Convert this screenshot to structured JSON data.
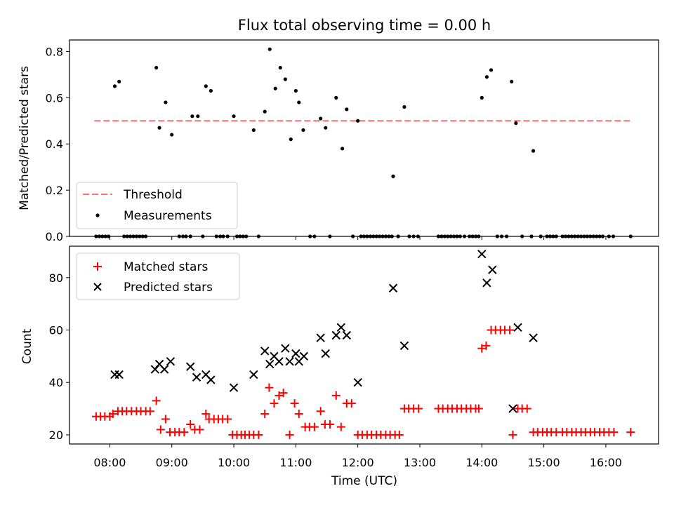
{
  "title": "Flux total observing time = 0.00 h",
  "colors": {
    "threshold": "#ff6f6f",
    "measurement": "#000000",
    "matched": "#ff0000",
    "predicted": "#000000"
  },
  "chart_data": [
    {
      "type": "scatter",
      "panel": "top",
      "ylabel": "Matched/Predicted stars",
      "ylim": [
        0,
        0.85
      ],
      "xlim_hours": [
        7.35,
        16.85
      ],
      "yticks": [
        0.0,
        0.2,
        0.4,
        0.6,
        0.8
      ],
      "ytick_labels": [
        "0.0",
        "0.2",
        "0.4",
        "0.6",
        "0.8"
      ],
      "xticks_hours": [
        8,
        9,
        10,
        11,
        12,
        13,
        14,
        15,
        16
      ],
      "grid": false,
      "legend_position": "bottom-left",
      "threshold": {
        "name": "Threshold",
        "value": 0.5,
        "x_range_hours": [
          7.75,
          16.4
        ],
        "style": "dashed"
      },
      "series": [
        {
          "name": "Measurements",
          "marker": "dot",
          "points": [
            [
              7.78,
              0
            ],
            [
              7.83,
              0
            ],
            [
              7.88,
              0
            ],
            [
              7.93,
              0
            ],
            [
              7.98,
              0
            ],
            [
              8.08,
              0.65
            ],
            [
              8.15,
              0.67
            ],
            [
              8.23,
              0
            ],
            [
              8.28,
              0
            ],
            [
              8.33,
              0
            ],
            [
              8.38,
              0
            ],
            [
              8.43,
              0
            ],
            [
              8.48,
              0
            ],
            [
              8.53,
              0
            ],
            [
              8.58,
              0
            ],
            [
              8.75,
              0.73
            ],
            [
              8.8,
              0.47
            ],
            [
              8.9,
              0.58
            ],
            [
              9.0,
              0.44
            ],
            [
              9.12,
              0
            ],
            [
              9.18,
              0
            ],
            [
              9.23,
              0
            ],
            [
              9.3,
              0
            ],
            [
              9.33,
              0.52
            ],
            [
              9.42,
              0.52
            ],
            [
              9.5,
              0
            ],
            [
              9.55,
              0.65
            ],
            [
              9.63,
              0.63
            ],
            [
              9.72,
              0
            ],
            [
              9.78,
              0
            ],
            [
              9.83,
              0
            ],
            [
              9.9,
              0
            ],
            [
              10.0,
              0.52
            ],
            [
              10.05,
              0
            ],
            [
              10.1,
              0
            ],
            [
              10.15,
              0
            ],
            [
              10.2,
              0
            ],
            [
              10.32,
              0.46
            ],
            [
              10.4,
              0
            ],
            [
              10.5,
              0.54
            ],
            [
              10.58,
              0.81
            ],
            [
              10.67,
              0.64
            ],
            [
              10.75,
              0.73
            ],
            [
              10.83,
              0.68
            ],
            [
              10.92,
              0.42
            ],
            [
              11.0,
              0.63
            ],
            [
              11.05,
              0.58
            ],
            [
              11.12,
              0.46
            ],
            [
              11.23,
              0
            ],
            [
              11.3,
              0
            ],
            [
              11.4,
              0.51
            ],
            [
              11.48,
              0.47
            ],
            [
              11.55,
              0
            ],
            [
              11.65,
              0.6
            ],
            [
              11.75,
              0.38
            ],
            [
              11.82,
              0.55
            ],
            [
              11.92,
              0
            ],
            [
              12.0,
              0.5
            ],
            [
              12.05,
              0
            ],
            [
              12.1,
              0
            ],
            [
              12.15,
              0
            ],
            [
              12.2,
              0
            ],
            [
              12.25,
              0
            ],
            [
              12.3,
              0
            ],
            [
              12.35,
              0
            ],
            [
              12.4,
              0
            ],
            [
              12.45,
              0
            ],
            [
              12.5,
              0
            ],
            [
              12.55,
              0
            ],
            [
              12.57,
              0.26
            ],
            [
              12.65,
              0
            ],
            [
              12.75,
              0.56
            ],
            [
              12.83,
              0
            ],
            [
              12.9,
              0
            ],
            [
              12.97,
              0
            ],
            [
              13.3,
              0
            ],
            [
              13.35,
              0
            ],
            [
              13.4,
              0
            ],
            [
              13.45,
              0
            ],
            [
              13.5,
              0
            ],
            [
              13.55,
              0
            ],
            [
              13.6,
              0
            ],
            [
              13.65,
              0
            ],
            [
              13.72,
              0
            ],
            [
              13.8,
              0
            ],
            [
              13.85,
              0
            ],
            [
              13.9,
              0
            ],
            [
              13.95,
              0
            ],
            [
              14.0,
              0.6
            ],
            [
              14.08,
              0.69
            ],
            [
              14.15,
              0.72
            ],
            [
              14.25,
              0
            ],
            [
              14.32,
              0
            ],
            [
              14.4,
              0
            ],
            [
              14.48,
              0.67
            ],
            [
              14.55,
              0.49
            ],
            [
              14.65,
              0
            ],
            [
              14.8,
              0
            ],
            [
              14.83,
              0.37
            ],
            [
              14.95,
              0
            ],
            [
              15.05,
              0
            ],
            [
              15.1,
              0
            ],
            [
              15.15,
              0
            ],
            [
              15.2,
              0
            ],
            [
              15.3,
              0
            ],
            [
              15.35,
              0
            ],
            [
              15.4,
              0
            ],
            [
              15.45,
              0
            ],
            [
              15.5,
              0
            ],
            [
              15.55,
              0
            ],
            [
              15.6,
              0
            ],
            [
              15.65,
              0
            ],
            [
              15.7,
              0
            ],
            [
              15.75,
              0
            ],
            [
              15.8,
              0
            ],
            [
              15.85,
              0
            ],
            [
              15.9,
              0
            ],
            [
              15.95,
              0
            ],
            [
              16.05,
              0
            ],
            [
              16.12,
              0
            ],
            [
              16.4,
              0
            ]
          ]
        }
      ]
    },
    {
      "type": "scatter",
      "panel": "bottom",
      "xlabel": "Time (UTC)",
      "ylabel": "Count",
      "ylim": [
        16.5,
        92
      ],
      "xlim_hours": [
        7.35,
        16.85
      ],
      "yticks": [
        20,
        40,
        60,
        80
      ],
      "ytick_labels": [
        "20",
        "40",
        "60",
        "80"
      ],
      "xticks_hours": [
        8,
        9,
        10,
        11,
        12,
        13,
        14,
        15,
        16
      ],
      "xtick_labels": [
        "08:00",
        "09:00",
        "10:00",
        "11:00",
        "12:00",
        "13:00",
        "14:00",
        "15:00",
        "16:00"
      ],
      "grid": false,
      "legend_position": "top-left",
      "series": [
        {
          "name": "Matched stars",
          "marker": "plus",
          "points": [
            [
              7.78,
              27
            ],
            [
              7.85,
              27
            ],
            [
              7.92,
              27
            ],
            [
              8.0,
              27
            ],
            [
              8.05,
              28
            ],
            [
              8.13,
              29
            ],
            [
              8.2,
              29
            ],
            [
              8.27,
              29
            ],
            [
              8.35,
              29
            ],
            [
              8.43,
              29
            ],
            [
              8.5,
              29
            ],
            [
              8.58,
              29
            ],
            [
              8.65,
              29
            ],
            [
              8.75,
              33
            ],
            [
              8.82,
              22
            ],
            [
              8.9,
              26
            ],
            [
              8.97,
              21
            ],
            [
              9.05,
              21
            ],
            [
              9.12,
              21
            ],
            [
              9.2,
              21
            ],
            [
              9.3,
              24
            ],
            [
              9.37,
              22
            ],
            [
              9.45,
              22
            ],
            [
              9.55,
              28
            ],
            [
              9.6,
              26
            ],
            [
              9.68,
              26
            ],
            [
              9.75,
              26
            ],
            [
              9.82,
              26
            ],
            [
              9.9,
              26
            ],
            [
              9.98,
              20
            ],
            [
              10.05,
              20
            ],
            [
              10.12,
              20
            ],
            [
              10.18,
              20
            ],
            [
              10.25,
              20
            ],
            [
              10.32,
              20
            ],
            [
              10.4,
              20
            ],
            [
              10.5,
              28
            ],
            [
              10.57,
              38
            ],
            [
              10.65,
              32
            ],
            [
              10.73,
              35
            ],
            [
              10.8,
              36
            ],
            [
              10.9,
              20
            ],
            [
              10.98,
              32
            ],
            [
              11.05,
              28
            ],
            [
              11.15,
              23
            ],
            [
              11.22,
              23
            ],
            [
              11.3,
              23
            ],
            [
              11.4,
              29
            ],
            [
              11.47,
              24
            ],
            [
              11.55,
              24
            ],
            [
              11.65,
              35
            ],
            [
              11.73,
              23
            ],
            [
              11.82,
              32
            ],
            [
              11.9,
              32
            ],
            [
              12.0,
              20
            ],
            [
              12.07,
              20
            ],
            [
              12.15,
              20
            ],
            [
              12.22,
              20
            ],
            [
              12.3,
              20
            ],
            [
              12.37,
              20
            ],
            [
              12.45,
              20
            ],
            [
              12.52,
              20
            ],
            [
              12.6,
              20
            ],
            [
              12.67,
              20
            ],
            [
              12.75,
              30
            ],
            [
              12.82,
              30
            ],
            [
              12.9,
              30
            ],
            [
              12.98,
              30
            ],
            [
              13.3,
              30
            ],
            [
              13.37,
              30
            ],
            [
              13.45,
              30
            ],
            [
              13.52,
              30
            ],
            [
              13.6,
              30
            ],
            [
              13.67,
              30
            ],
            [
              13.75,
              30
            ],
            [
              13.82,
              30
            ],
            [
              13.9,
              30
            ],
            [
              13.95,
              30
            ],
            [
              14.0,
              53
            ],
            [
              14.07,
              54
            ],
            [
              14.15,
              60
            ],
            [
              14.22,
              60
            ],
            [
              14.3,
              60
            ],
            [
              14.37,
              60
            ],
            [
              14.45,
              60
            ],
            [
              14.5,
              20
            ],
            [
              14.58,
              30
            ],
            [
              14.65,
              30
            ],
            [
              14.73,
              30
            ],
            [
              14.83,
              21
            ],
            [
              14.9,
              21
            ],
            [
              14.98,
              21
            ],
            [
              15.05,
              21
            ],
            [
              15.12,
              21
            ],
            [
              15.2,
              21
            ],
            [
              15.3,
              21
            ],
            [
              15.37,
              21
            ],
            [
              15.45,
              21
            ],
            [
              15.52,
              21
            ],
            [
              15.6,
              21
            ],
            [
              15.67,
              21
            ],
            [
              15.75,
              21
            ],
            [
              15.82,
              21
            ],
            [
              15.9,
              21
            ],
            [
              15.97,
              21
            ],
            [
              16.05,
              21
            ],
            [
              16.13,
              21
            ],
            [
              16.4,
              21
            ]
          ]
        },
        {
          "name": "Predicted stars",
          "marker": "x",
          "points": [
            [
              8.08,
              43
            ],
            [
              8.15,
              43
            ],
            [
              8.73,
              45
            ],
            [
              8.8,
              47
            ],
            [
              8.88,
              45
            ],
            [
              8.98,
              48
            ],
            [
              9.3,
              46
            ],
            [
              9.4,
              42
            ],
            [
              9.55,
              43
            ],
            [
              9.63,
              41
            ],
            [
              10.0,
              38
            ],
            [
              10.32,
              43
            ],
            [
              10.5,
              52
            ],
            [
              10.58,
              47
            ],
            [
              10.65,
              50
            ],
            [
              10.73,
              48
            ],
            [
              10.83,
              53
            ],
            [
              10.9,
              48
            ],
            [
              11.0,
              51
            ],
            [
              11.05,
              48
            ],
            [
              11.13,
              50
            ],
            [
              11.4,
              57
            ],
            [
              11.48,
              51
            ],
            [
              11.65,
              58
            ],
            [
              11.73,
              61
            ],
            [
              11.82,
              58
            ],
            [
              12.0,
              40
            ],
            [
              12.57,
              76
            ],
            [
              12.75,
              54
            ],
            [
              14.0,
              89
            ],
            [
              14.08,
              78
            ],
            [
              14.17,
              83
            ],
            [
              14.5,
              30
            ],
            [
              14.58,
              61
            ],
            [
              14.83,
              57
            ]
          ]
        }
      ]
    }
  ]
}
